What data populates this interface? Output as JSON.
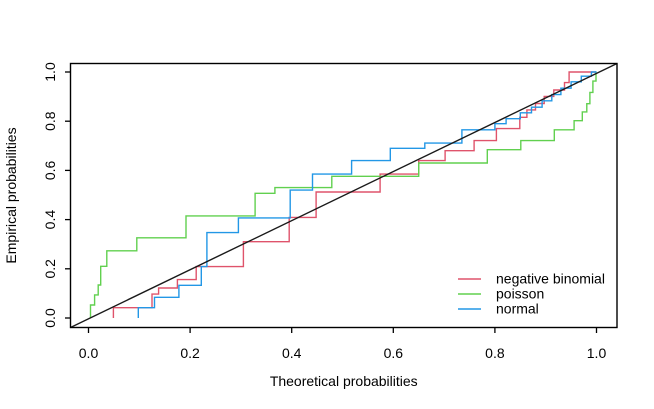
{
  "chart_data": {
    "type": "line",
    "subtype": "pp-plot-step",
    "title": "",
    "xlabel": "Theoretical probabilities",
    "ylabel": "Empirical probabilities",
    "xlim": [
      -0.04,
      1.04
    ],
    "ylim": [
      -0.04,
      1.04
    ],
    "grid": false,
    "box": true,
    "x_ticks": [
      0.0,
      0.2,
      0.4,
      0.6,
      0.8,
      1.0
    ],
    "x_tick_labels": [
      "0.0",
      "0.2",
      "0.4",
      "0.6",
      "0.8",
      "1.0"
    ],
    "y_ticks": [
      0.0,
      0.2,
      0.4,
      0.6,
      0.8,
      1.0
    ],
    "y_tick_labels": [
      "0.0",
      "0.2",
      "0.4",
      "0.6",
      "0.8",
      "1.0"
    ],
    "reference_line": {
      "name": "identity-line",
      "from": [
        0,
        0
      ],
      "to": [
        1,
        1
      ],
      "color": "#000000"
    },
    "series": [
      {
        "name": "negative binomial",
        "color": "#DF536B",
        "step": "post",
        "starts_at_zero": true,
        "points": [
          [
            0.049,
            0.042
          ],
          [
            0.125,
            0.097
          ],
          [
            0.138,
            0.122
          ],
          [
            0.175,
            0.156
          ],
          [
            0.212,
            0.209
          ],
          [
            0.305,
            0.31
          ],
          [
            0.395,
            0.409
          ],
          [
            0.448,
            0.512
          ],
          [
            0.574,
            0.585
          ],
          [
            0.65,
            0.64
          ],
          [
            0.702,
            0.68
          ],
          [
            0.759,
            0.721
          ],
          [
            0.803,
            0.77
          ],
          [
            0.849,
            0.816
          ],
          [
            0.863,
            0.846
          ],
          [
            0.88,
            0.872
          ],
          [
            0.897,
            0.901
          ],
          [
            0.916,
            0.927
          ],
          [
            0.937,
            0.957
          ],
          [
            0.946,
            1.0
          ],
          [
            1.0,
            1.0
          ]
        ]
      },
      {
        "name": "poisson",
        "color": "#61D04F",
        "step": "post",
        "starts_at_zero": true,
        "points": [
          [
            0.004,
            0.053
          ],
          [
            0.012,
            0.094
          ],
          [
            0.019,
            0.134
          ],
          [
            0.024,
            0.21
          ],
          [
            0.036,
            0.273
          ],
          [
            0.095,
            0.326
          ],
          [
            0.192,
            0.415
          ],
          [
            0.328,
            0.507
          ],
          [
            0.367,
            0.53
          ],
          [
            0.479,
            0.576
          ],
          [
            0.65,
            0.63
          ],
          [
            0.785,
            0.684
          ],
          [
            0.851,
            0.721
          ],
          [
            0.917,
            0.765
          ],
          [
            0.956,
            0.802
          ],
          [
            0.972,
            0.838
          ],
          [
            0.981,
            0.871
          ],
          [
            0.987,
            0.917
          ],
          [
            0.993,
            0.963
          ],
          [
            0.999,
            1.0
          ],
          [
            1.0,
            1.0
          ]
        ]
      },
      {
        "name": "normal",
        "color": "#2297E6",
        "step": "post",
        "starts_at_zero": true,
        "points": [
          [
            0.098,
            0.042
          ],
          [
            0.13,
            0.084
          ],
          [
            0.178,
            0.133
          ],
          [
            0.222,
            0.209
          ],
          [
            0.233,
            0.347
          ],
          [
            0.295,
            0.407
          ],
          [
            0.397,
            0.52
          ],
          [
            0.441,
            0.585
          ],
          [
            0.518,
            0.64
          ],
          [
            0.594,
            0.69
          ],
          [
            0.662,
            0.711
          ],
          [
            0.735,
            0.765
          ],
          [
            0.8,
            0.79
          ],
          [
            0.822,
            0.81
          ],
          [
            0.85,
            0.834
          ],
          [
            0.872,
            0.857
          ],
          [
            0.893,
            0.883
          ],
          [
            0.912,
            0.908
          ],
          [
            0.93,
            0.934
          ],
          [
            0.95,
            0.96
          ],
          [
            0.97,
            0.983
          ],
          [
            0.99,
            1.0
          ],
          [
            1.0,
            1.0
          ]
        ]
      }
    ],
    "legend": {
      "position": "bottom-right",
      "entries": [
        "negative binomial",
        "poisson",
        "normal"
      ]
    }
  }
}
